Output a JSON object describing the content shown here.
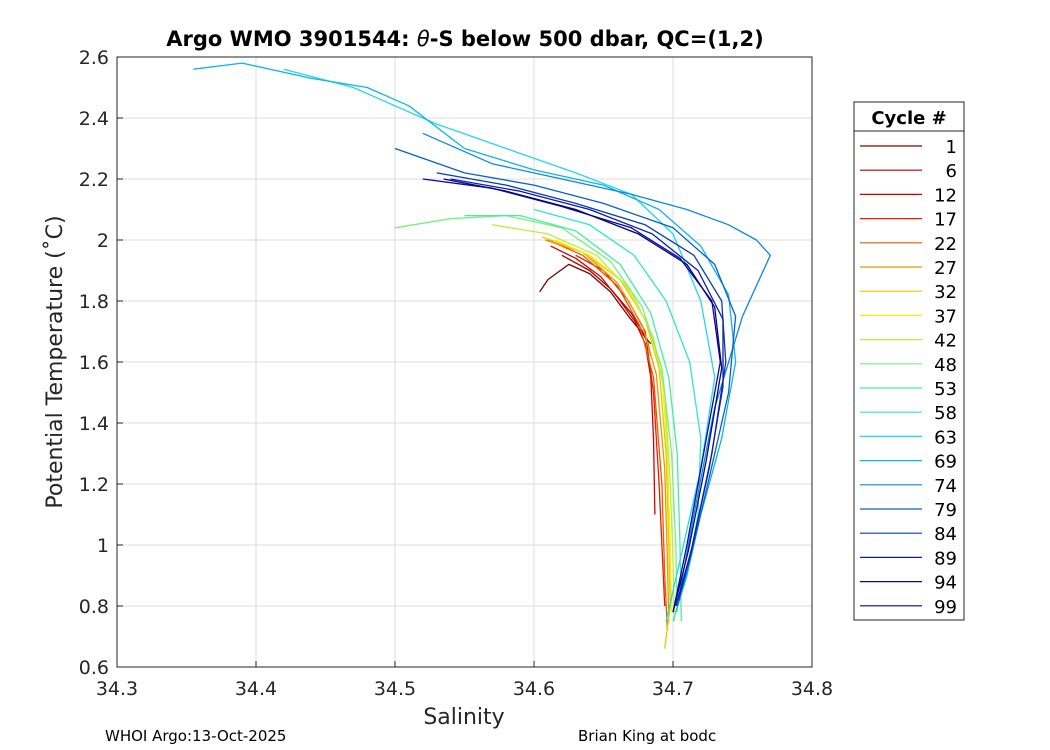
{
  "chart_data": {
    "type": "line",
    "title_prefix": "Argo WMO 3901544: ",
    "title_theta": "θ",
    "title_suffix": "-S below 500 dbar,  QC=(1,2)",
    "xlabel": "Salinity",
    "ylabel": "Potential Temperature (˚C)",
    "xlim": [
      34.3,
      34.8
    ],
    "ylim": [
      0.6,
      2.6
    ],
    "xticks": [
      "34.3",
      "34.4",
      "34.5",
      "34.6",
      "34.7",
      "34.8"
    ],
    "yticks": [
      "0.6",
      "0.8",
      "1",
      "1.2",
      "1.4",
      "1.6",
      "1.8",
      "2",
      "2.2",
      "2.4",
      "2.6"
    ],
    "grid": true,
    "legend": {
      "title": "Cycle #",
      "position": "outside-right",
      "entries": [
        {
          "label": "1",
          "color": "#800000"
        },
        {
          "label": "6",
          "color": "#a80000"
        },
        {
          "label": "12",
          "color": "#d40000"
        },
        {
          "label": "17",
          "color": "#e81c00"
        },
        {
          "label": "22",
          "color": "#e65a00"
        },
        {
          "label": "27",
          "color": "#e89a00"
        },
        {
          "label": "32",
          "color": "#e8c800"
        },
        {
          "label": "37",
          "color": "#f4f000"
        },
        {
          "label": "42",
          "color": "#b8f040"
        },
        {
          "label": "48",
          "color": "#7af07a"
        },
        {
          "label": "53",
          "color": "#40f0a0"
        },
        {
          "label": "58",
          "color": "#30e8c8"
        },
        {
          "label": "63",
          "color": "#20d8f0"
        },
        {
          "label": "69",
          "color": "#10b4e8"
        },
        {
          "label": "74",
          "color": "#0c8ad8"
        },
        {
          "label": "79",
          "color": "#0a60c8"
        },
        {
          "label": "84",
          "color": "#0a3ab8"
        },
        {
          "label": "89",
          "color": "#0a1eb0"
        },
        {
          "label": "94",
          "color": "#0808a0"
        },
        {
          "label": "99",
          "color": "#060680"
        }
      ]
    },
    "series": [
      {
        "name": "1",
        "color": "#800000",
        "salinity": [
          34.604,
          34.61,
          34.625,
          34.64,
          34.655,
          34.668,
          34.677,
          34.682,
          34.684
        ],
        "theta": [
          1.83,
          1.87,
          1.92,
          1.89,
          1.83,
          1.75,
          1.7,
          1.67,
          1.66
        ]
      },
      {
        "name": "6",
        "color": "#a80000",
        "salinity": [
          34.62,
          34.64,
          34.655,
          34.67,
          34.678,
          34.682,
          34.684
        ],
        "theta": [
          1.95,
          1.9,
          1.84,
          1.76,
          1.7,
          1.66,
          1.62
        ]
      },
      {
        "name": "12",
        "color": "#d40000",
        "salinity": [
          34.612,
          34.63,
          34.648,
          34.662,
          34.673,
          34.68,
          34.684,
          34.686,
          34.687
        ],
        "theta": [
          1.98,
          1.94,
          1.88,
          1.8,
          1.73,
          1.66,
          1.55,
          1.35,
          1.1
        ]
      },
      {
        "name": "17",
        "color": "#e81c00",
        "salinity": [
          34.63,
          34.65,
          34.668,
          34.68,
          34.686,
          34.69,
          34.692,
          34.694
        ],
        "theta": [
          1.95,
          1.9,
          1.8,
          1.7,
          1.5,
          1.2,
          1.0,
          0.8
        ]
      },
      {
        "name": "22",
        "color": "#e65a00",
        "salinity": [
          34.61,
          34.635,
          34.66,
          34.676,
          34.686,
          34.692,
          34.694,
          34.696
        ],
        "theta": [
          2.0,
          1.95,
          1.85,
          1.72,
          1.55,
          1.2,
          0.9,
          0.72
        ]
      },
      {
        "name": "27",
        "color": "#e89a00",
        "salinity": [
          34.608,
          34.635,
          34.66,
          34.678,
          34.688,
          34.694,
          34.696,
          34.697
        ],
        "theta": [
          2.0,
          1.96,
          1.86,
          1.72,
          1.56,
          1.25,
          0.95,
          0.75
        ]
      },
      {
        "name": "32",
        "color": "#e8c800",
        "salinity": [
          34.606,
          34.635,
          34.662,
          34.68,
          34.69,
          34.695,
          34.697,
          34.698,
          34.694
        ],
        "theta": [
          2.01,
          1.96,
          1.87,
          1.74,
          1.58,
          1.3,
          1.0,
          0.8,
          0.66
        ]
      },
      {
        "name": "37",
        "color": "#f4f000",
        "salinity": [
          34.615,
          34.64,
          34.665,
          34.682,
          34.692,
          34.696,
          34.698,
          34.699
        ],
        "theta": [
          2.0,
          1.95,
          1.86,
          1.72,
          1.56,
          1.3,
          1.0,
          0.78
        ]
      },
      {
        "name": "42",
        "color": "#b8f040",
        "salinity": [
          34.57,
          34.61,
          34.645,
          34.67,
          34.686,
          34.694,
          34.698,
          34.7,
          34.701
        ],
        "theta": [
          2.05,
          2.02,
          1.95,
          1.83,
          1.68,
          1.5,
          1.2,
          0.95,
          0.75
        ]
      },
      {
        "name": "48",
        "color": "#7af07a",
        "salinity": [
          34.5,
          34.54,
          34.58,
          34.62,
          34.655,
          34.678,
          34.692,
          34.699,
          34.702,
          34.703
        ],
        "theta": [
          2.04,
          2.07,
          2.08,
          2.04,
          1.93,
          1.78,
          1.58,
          1.3,
          1.0,
          0.78
        ]
      },
      {
        "name": "53",
        "color": "#40f0a0",
        "salinity": [
          34.55,
          34.59,
          34.63,
          34.662,
          34.684,
          34.697,
          34.703,
          34.705,
          34.706
        ],
        "theta": [
          2.08,
          2.08,
          2.03,
          1.92,
          1.76,
          1.55,
          1.3,
          1.0,
          0.75
        ]
      },
      {
        "name": "58",
        "color": "#30e8c8",
        "salinity": [
          34.6,
          34.64,
          34.672,
          34.695,
          34.712,
          34.72,
          34.718,
          34.71,
          34.7
        ],
        "theta": [
          2.1,
          2.05,
          1.95,
          1.8,
          1.6,
          1.35,
          1.1,
          0.9,
          0.75
        ]
      },
      {
        "name": "63",
        "color": "#20d8f0",
        "salinity": [
          34.42,
          34.47,
          34.53,
          34.58,
          34.63,
          34.67,
          34.7,
          34.72,
          34.73,
          34.72,
          34.705,
          34.695
        ],
        "theta": [
          2.56,
          2.5,
          2.38,
          2.3,
          2.22,
          2.15,
          2.02,
          1.8,
          1.55,
          1.25,
          0.95,
          0.75
        ]
      },
      {
        "name": "69",
        "color": "#10b4e8",
        "salinity": [
          34.355,
          34.39,
          34.44,
          34.48,
          34.51,
          34.55,
          34.6,
          34.65,
          34.69,
          34.72,
          34.74,
          34.745,
          34.735,
          34.72,
          34.71,
          34.702
        ],
        "theta": [
          2.56,
          2.58,
          2.53,
          2.5,
          2.44,
          2.3,
          2.23,
          2.18,
          2.1,
          1.98,
          1.82,
          1.6,
          1.35,
          1.1,
          0.9,
          0.78
        ]
      },
      {
        "name": "74",
        "color": "#0c8ad8",
        "salinity": [
          34.52,
          34.57,
          34.62,
          34.67,
          34.71,
          34.74,
          34.76,
          34.77,
          34.75,
          34.73,
          34.715,
          34.705
        ],
        "theta": [
          2.35,
          2.25,
          2.2,
          2.15,
          2.1,
          2.05,
          2.0,
          1.95,
          1.75,
          1.45,
          1.1,
          0.85
        ]
      },
      {
        "name": "79",
        "color": "#0a60c8",
        "salinity": [
          34.5,
          34.55,
          34.6,
          34.65,
          34.7,
          34.73,
          34.745,
          34.74,
          34.725,
          34.712,
          34.703
        ],
        "theta": [
          2.3,
          2.22,
          2.18,
          2.12,
          2.04,
          1.92,
          1.75,
          1.5,
          1.2,
          0.95,
          0.8
        ]
      },
      {
        "name": "84",
        "color": "#0a3ab8",
        "salinity": [
          34.53,
          34.58,
          34.63,
          34.68,
          34.715,
          34.735,
          34.738,
          34.728,
          34.714,
          34.704
        ],
        "theta": [
          2.22,
          2.18,
          2.12,
          2.05,
          1.95,
          1.8,
          1.6,
          1.3,
          1.0,
          0.82
        ]
      },
      {
        "name": "89",
        "color": "#0a1eb0",
        "salinity": [
          34.54,
          34.59,
          34.64,
          34.685,
          34.718,
          34.736,
          34.736,
          34.726,
          34.713,
          34.702
        ],
        "theta": [
          2.2,
          2.16,
          2.1,
          2.02,
          1.9,
          1.74,
          1.52,
          1.25,
          0.98,
          0.8
        ]
      },
      {
        "name": "94",
        "color": "#0808a0",
        "salinity": [
          34.52,
          34.57,
          34.62,
          34.67,
          34.705,
          34.728,
          34.734,
          34.722,
          34.71,
          34.7
        ],
        "theta": [
          2.2,
          2.17,
          2.11,
          2.04,
          1.94,
          1.8,
          1.6,
          1.3,
          1.0,
          0.78
        ]
      },
      {
        "name": "99",
        "color": "#060680",
        "salinity": [
          34.535,
          34.58,
          34.63,
          34.675,
          34.71,
          34.73,
          34.735,
          34.724,
          34.711,
          34.7
        ],
        "theta": [
          2.2,
          2.16,
          2.1,
          2.02,
          1.92,
          1.78,
          1.58,
          1.28,
          0.98,
          0.78
        ]
      }
    ]
  },
  "footer": {
    "left": "WHOI Argo:13-Oct-2025",
    "right": "Brian King at bodc"
  }
}
